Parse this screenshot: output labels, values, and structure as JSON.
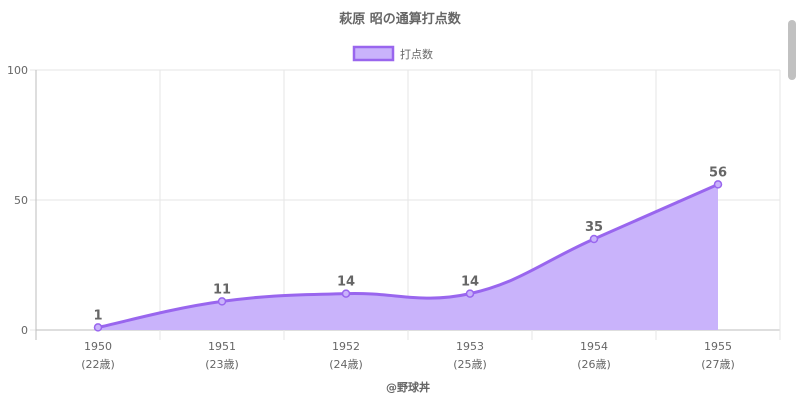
{
  "chart_data": {
    "type": "area",
    "title": "萩原 昭の通算打点数",
    "legend": {
      "label": "打点数",
      "position": "top"
    },
    "x": [
      "1950",
      "1951",
      "1952",
      "1953",
      "1954",
      "1955"
    ],
    "x_sub": [
      "(22歳)",
      "(23歳)",
      "(24歳)",
      "(25歳)",
      "(26歳)",
      "(27歳)"
    ],
    "series": [
      {
        "name": "打点数",
        "values": [
          1,
          11,
          14,
          14,
          35,
          56
        ]
      }
    ],
    "data_labels": [
      "1",
      "11",
      "14",
      "14",
      "35",
      "56"
    ],
    "ylim": [
      0,
      100
    ],
    "yticks": [
      "0",
      "50",
      "100"
    ],
    "grid": true,
    "colors": {
      "line": "#9966ee",
      "fill": "#c9b3fb",
      "grid": "#e5e5e5",
      "axis": "#bdbdbd"
    }
  },
  "footer": {
    "credit": "@野球丼"
  }
}
